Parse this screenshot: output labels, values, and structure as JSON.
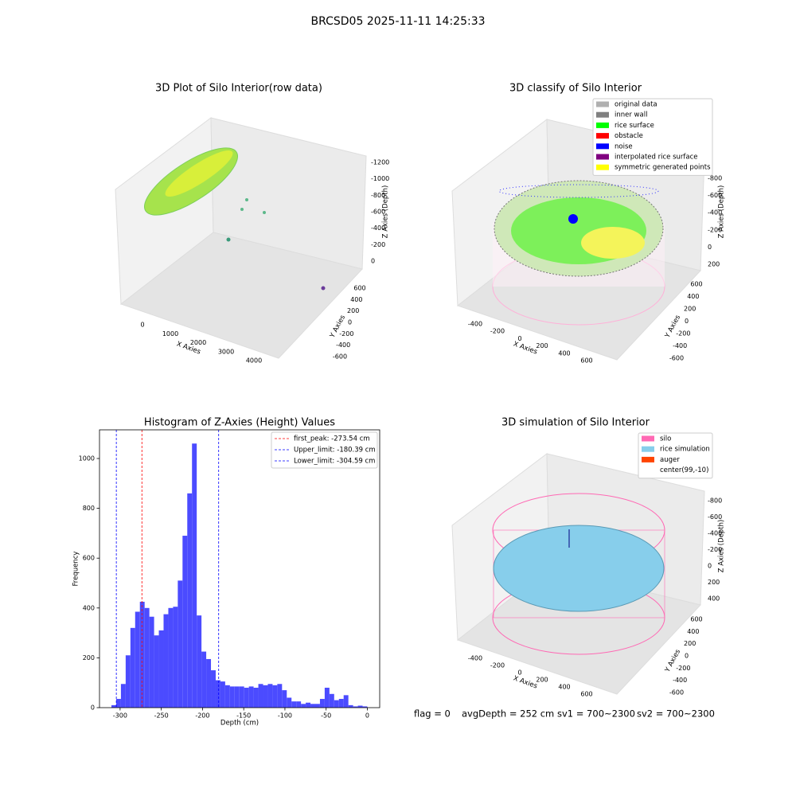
{
  "title": "BRCSD05 2025-11-11 14:25:33",
  "chart_data": [
    {
      "type": "scatter3d",
      "title": "3D Plot of Silo Interior(row data)",
      "xlabel": "X Axies",
      "ylabel": "Y Axies",
      "zlabel": "Z Axies (Depth)",
      "xticks": [
        0,
        1000,
        2000,
        3000,
        4000
      ],
      "yticks": [
        -600,
        -400,
        -200,
        0,
        200,
        400,
        600
      ],
      "zticks": [
        -1200,
        -1000,
        -800,
        -600,
        -400,
        -200,
        0
      ]
    },
    {
      "type": "scatter3d",
      "title": "3D classify of Silo Interior",
      "xlabel": "X Axies",
      "ylabel": "Y Axies",
      "zlabel": "Z Axies (Depth)",
      "xticks": [
        -400,
        -200,
        0,
        200,
        400,
        600
      ],
      "yticks": [
        -600,
        -400,
        -200,
        0,
        200,
        400,
        600
      ],
      "zticks": [
        -800,
        -600,
        -400,
        -200,
        0,
        200
      ],
      "series": [
        {
          "name": "original data",
          "color": "#b0b0b0"
        },
        {
          "name": "inner wall",
          "color": "#808080"
        },
        {
          "name": "rice surface",
          "color": "#00ff00"
        },
        {
          "name": "obstacle",
          "color": "#ff0000"
        },
        {
          "name": "noise",
          "color": "#0000ff"
        },
        {
          "name": "interpolated rice surface",
          "color": "#800080"
        },
        {
          "name": "symmetric generated points",
          "color": "#ffff00"
        }
      ]
    },
    {
      "type": "histogram",
      "title": "Histogram of Z-Axies (Height) Values",
      "xlabel": "Depth (cm)",
      "ylabel": "Frequency",
      "color": "#4b4bff",
      "bins": [
        -310.5,
        -304.75,
        -299,
        -293.25,
        -287.5,
        -281.75,
        -276,
        -270.25,
        -264.5,
        -258.75,
        -253,
        -247.25,
        -241.5,
        -235.75,
        -230,
        -224.25,
        -218.5,
        -212.75,
        -207,
        -201.25,
        -195.5,
        -189.75,
        -184,
        -178.25,
        -172.5,
        -166.75,
        -161,
        -155.25,
        -149.5,
        -143.75,
        -138,
        -132.25,
        -126.5,
        -120.75,
        -115,
        -109.25,
        -103.5,
        -97.75,
        -92,
        -86.25,
        -80.5,
        -74.75,
        -69,
        -63.25,
        -57.5,
        -51.75,
        -46,
        -40.25,
        -34.5,
        -28.75,
        -23,
        -17.25,
        -11.5,
        -5.75,
        0
      ],
      "values": [
        10,
        35,
        95,
        210,
        320,
        385,
        425,
        400,
        365,
        290,
        310,
        375,
        400,
        405,
        510,
        690,
        860,
        1060,
        370,
        225,
        195,
        150,
        110,
        105,
        90,
        85,
        85,
        85,
        80,
        85,
        80,
        95,
        90,
        95,
        90,
        95,
        70,
        40,
        25,
        25,
        15,
        20,
        15,
        15,
        35,
        80,
        55,
        30,
        35,
        50,
        10,
        5,
        8,
        5
      ],
      "xlim": [
        -325,
        15
      ],
      "ylim": [
        0,
        1115
      ],
      "xticks": [
        -300,
        -250,
        -200,
        -150,
        -100,
        -50,
        0
      ],
      "yticks": [
        0,
        200,
        400,
        600,
        800,
        1000
      ],
      "lines": [
        {
          "name": "first_peak: -273.54 cm",
          "value": -273.54,
          "color": "#ff0000"
        },
        {
          "name": "Upper_limit: -180.39 cm",
          "value": -180.39,
          "color": "#0000ff"
        },
        {
          "name": "Lower_limit: -304.59 cm",
          "value": -304.59,
          "color": "#0000ff"
        }
      ]
    },
    {
      "type": "surface3d",
      "title": "3D simulation of Silo Interior",
      "xlabel": "X Axies",
      "ylabel": "Y Axies",
      "zlabel": "Z Axies (Depth)",
      "xticks": [
        -400,
        -200,
        0,
        200,
        400,
        600
      ],
      "yticks": [
        -600,
        -400,
        -200,
        0,
        200,
        400,
        600
      ],
      "zticks": [
        -800,
        -600,
        -400,
        -200,
        0,
        200,
        400
      ],
      "series": [
        {
          "name": "silo",
          "color": "#ff69b4"
        },
        {
          "name": "rice simulation",
          "color": "#87ceeb"
        },
        {
          "name": "auger",
          "color": "#ff4500"
        },
        {
          "name": "center(99,-10)"
        }
      ]
    }
  ],
  "status": [
    "flag = 0",
    "avgDepth = 252 cm",
    "sv1 = 700~2300",
    "sv2 = 700~2300"
  ]
}
